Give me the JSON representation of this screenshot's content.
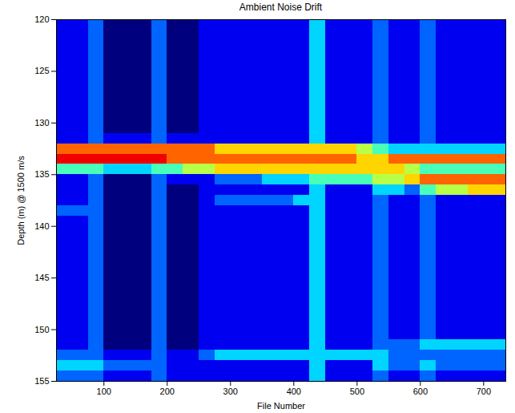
{
  "chart_data": {
    "type": "heatmap",
    "title": "Ambient Noise Drift",
    "x_label": "File Number",
    "y_label": "Depth (m) @ 1500 m/s",
    "xlim": [
      25,
      735
    ],
    "ylim": [
      120,
      155
    ],
    "xticks": [
      100,
      200,
      300,
      400,
      500,
      600,
      700
    ],
    "yticks": [
      120,
      125,
      130,
      135,
      140,
      145,
      150,
      155
    ],
    "value_range": [
      0,
      9
    ],
    "x_bins": [
      25,
      50,
      75,
      100,
      125,
      150,
      175,
      200,
      225,
      250,
      275,
      300,
      325,
      350,
      375,
      400,
      425,
      450,
      475,
      500,
      525,
      550,
      575,
      600,
      625,
      650,
      675,
      700,
      725,
      750
    ],
    "y_bins": [
      120,
      121,
      122,
      123,
      124,
      125,
      126,
      127,
      128,
      129,
      130,
      131,
      132,
      133,
      134,
      135,
      136,
      137,
      138,
      139,
      140,
      141,
      142,
      143,
      144,
      145,
      146,
      147,
      148,
      149,
      150,
      151,
      152,
      153,
      154,
      155
    ],
    "values": [
      [
        1,
        1,
        2,
        0,
        0,
        0,
        2,
        0,
        0,
        1,
        1,
        1,
        1,
        1,
        1,
        1,
        3,
        1,
        1,
        1,
        2,
        1,
        1,
        2,
        1,
        1,
        1,
        1,
        1
      ],
      [
        1,
        1,
        2,
        0,
        0,
        0,
        2,
        0,
        0,
        1,
        1,
        1,
        1,
        1,
        1,
        1,
        3,
        1,
        1,
        1,
        2,
        1,
        1,
        2,
        1,
        1,
        1,
        1,
        1
      ],
      [
        1,
        1,
        2,
        0,
        0,
        0,
        2,
        0,
        0,
        1,
        1,
        1,
        1,
        1,
        1,
        1,
        3,
        1,
        1,
        1,
        2,
        1,
        1,
        2,
        1,
        1,
        1,
        1,
        1
      ],
      [
        1,
        1,
        2,
        0,
        0,
        0,
        2,
        0,
        0,
        1,
        1,
        1,
        1,
        1,
        1,
        1,
        3,
        1,
        1,
        1,
        2,
        1,
        1,
        2,
        1,
        1,
        1,
        1,
        1
      ],
      [
        1,
        1,
        2,
        0,
        0,
        0,
        2,
        0,
        0,
        1,
        1,
        1,
        1,
        1,
        1,
        1,
        3,
        1,
        1,
        1,
        2,
        1,
        1,
        2,
        1,
        1,
        1,
        1,
        1
      ],
      [
        1,
        1,
        2,
        0,
        0,
        0,
        2,
        0,
        0,
        1,
        1,
        1,
        1,
        1,
        1,
        1,
        3,
        1,
        1,
        1,
        2,
        1,
        1,
        2,
        1,
        1,
        1,
        1,
        1
      ],
      [
        1,
        1,
        2,
        0,
        0,
        0,
        2,
        0,
        0,
        1,
        1,
        1,
        1,
        1,
        1,
        1,
        3,
        1,
        1,
        1,
        2,
        1,
        1,
        2,
        1,
        1,
        1,
        1,
        1
      ],
      [
        1,
        1,
        2,
        0,
        0,
        0,
        2,
        0,
        0,
        1,
        1,
        1,
        1,
        1,
        1,
        1,
        3,
        1,
        1,
        1,
        2,
        1,
        1,
        2,
        1,
        1,
        1,
        1,
        1
      ],
      [
        1,
        1,
        2,
        0,
        0,
        0,
        2,
        0,
        0,
        1,
        1,
        1,
        1,
        1,
        1,
        1,
        3,
        1,
        1,
        1,
        2,
        1,
        1,
        2,
        1,
        1,
        1,
        1,
        1
      ],
      [
        1,
        1,
        2,
        0,
        0,
        0,
        2,
        0,
        0,
        1,
        1,
        1,
        1,
        1,
        1,
        1,
        3,
        1,
        1,
        1,
        2,
        1,
        1,
        2,
        1,
        1,
        1,
        1,
        1
      ],
      [
        1,
        1,
        2,
        0,
        0,
        0,
        2,
        0,
        0,
        1,
        1,
        1,
        1,
        1,
        1,
        1,
        3,
        1,
        1,
        1,
        2,
        1,
        1,
        2,
        1,
        1,
        1,
        1,
        1
      ],
      [
        1,
        1,
        2,
        1,
        1,
        1,
        2,
        1,
        1,
        1,
        1,
        1,
        1,
        1,
        1,
        1,
        3,
        1,
        1,
        1,
        2,
        1,
        1,
        2,
        1,
        1,
        1,
        1,
        1
      ],
      [
        7,
        7,
        7,
        7,
        7,
        7,
        7,
        7,
        7,
        7,
        6,
        6,
        6,
        6,
        6,
        6,
        6,
        6,
        6,
        5,
        4,
        3,
        3,
        3,
        3,
        3,
        3,
        3,
        3
      ],
      [
        8,
        8,
        8,
        8,
        8,
        8,
        8,
        7,
        7,
        7,
        7,
        7,
        7,
        7,
        7,
        7,
        7,
        7,
        7,
        6,
        6,
        7,
        7,
        7,
        7,
        7,
        7,
        7,
        7
      ],
      [
        4,
        4,
        4,
        3,
        3,
        3,
        4,
        4,
        5,
        5,
        6,
        6,
        6,
        6,
        6,
        6,
        6,
        6,
        6,
        6,
        6,
        6,
        5,
        4,
        4,
        4,
        4,
        4,
        4
      ],
      [
        1,
        1,
        2,
        0,
        0,
        0,
        2,
        1,
        1,
        1,
        2,
        2,
        2,
        3,
        3,
        3,
        4,
        4,
        4,
        4,
        5,
        5,
        6,
        7,
        7,
        7,
        7,
        7,
        7
      ],
      [
        1,
        1,
        2,
        0,
        0,
        0,
        2,
        0,
        0,
        1,
        1,
        1,
        1,
        1,
        1,
        1,
        3,
        1,
        1,
        1,
        3,
        3,
        2,
        4,
        5,
        5,
        6,
        6,
        6
      ],
      [
        1,
        1,
        2,
        0,
        0,
        0,
        2,
        0,
        0,
        1,
        2,
        2,
        2,
        2,
        2,
        3,
        3,
        1,
        1,
        1,
        2,
        1,
        1,
        2,
        1,
        1,
        1,
        1,
        1
      ],
      [
        2,
        2,
        2,
        0,
        0,
        0,
        2,
        0,
        0,
        1,
        1,
        1,
        1,
        1,
        1,
        1,
        3,
        1,
        1,
        1,
        2,
        1,
        1,
        2,
        1,
        1,
        1,
        1,
        1
      ],
      [
        1,
        1,
        2,
        0,
        0,
        0,
        2,
        0,
        0,
        1,
        1,
        1,
        1,
        1,
        1,
        1,
        3,
        1,
        1,
        1,
        2,
        1,
        1,
        2,
        1,
        1,
        1,
        1,
        1
      ],
      [
        1,
        1,
        2,
        0,
        0,
        0,
        2,
        0,
        0,
        1,
        1,
        1,
        1,
        1,
        1,
        1,
        3,
        1,
        1,
        1,
        2,
        1,
        1,
        2,
        1,
        1,
        1,
        1,
        1
      ],
      [
        1,
        1,
        2,
        0,
        0,
        0,
        2,
        0,
        0,
        1,
        1,
        1,
        1,
        1,
        1,
        1,
        3,
        1,
        1,
        1,
        2,
        1,
        1,
        2,
        1,
        1,
        1,
        1,
        1
      ],
      [
        1,
        1,
        2,
        0,
        0,
        0,
        2,
        0,
        0,
        1,
        1,
        1,
        1,
        1,
        1,
        1,
        3,
        1,
        1,
        1,
        2,
        1,
        1,
        2,
        1,
        1,
        1,
        1,
        1
      ],
      [
        1,
        1,
        2,
        0,
        0,
        0,
        2,
        0,
        0,
        1,
        1,
        1,
        1,
        1,
        1,
        1,
        3,
        1,
        1,
        1,
        2,
        1,
        1,
        2,
        1,
        1,
        1,
        1,
        1
      ],
      [
        1,
        1,
        2,
        0,
        0,
        0,
        2,
        0,
        0,
        1,
        1,
        1,
        1,
        1,
        1,
        1,
        3,
        1,
        1,
        1,
        2,
        1,
        1,
        2,
        1,
        1,
        1,
        1,
        1
      ],
      [
        1,
        1,
        2,
        0,
        0,
        0,
        2,
        0,
        0,
        1,
        1,
        1,
        1,
        1,
        1,
        1,
        3,
        1,
        1,
        1,
        2,
        1,
        1,
        2,
        1,
        1,
        1,
        1,
        1
      ],
      [
        1,
        1,
        2,
        0,
        0,
        0,
        2,
        0,
        0,
        1,
        1,
        1,
        1,
        1,
        1,
        1,
        3,
        1,
        1,
        1,
        2,
        1,
        1,
        2,
        1,
        1,
        1,
        1,
        1
      ],
      [
        1,
        1,
        2,
        0,
        0,
        0,
        2,
        0,
        0,
        1,
        1,
        1,
        1,
        1,
        1,
        1,
        3,
        1,
        1,
        1,
        2,
        1,
        1,
        2,
        1,
        1,
        1,
        1,
        1
      ],
      [
        1,
        1,
        2,
        0,
        0,
        0,
        2,
        0,
        0,
        1,
        1,
        1,
        1,
        1,
        1,
        1,
        3,
        1,
        1,
        1,
        2,
        1,
        1,
        2,
        1,
        1,
        1,
        1,
        1
      ],
      [
        1,
        1,
        2,
        0,
        0,
        0,
        2,
        0,
        0,
        1,
        1,
        1,
        1,
        1,
        1,
        1,
        3,
        1,
        1,
        1,
        2,
        1,
        1,
        2,
        1,
        1,
        1,
        1,
        1
      ],
      [
        1,
        1,
        2,
        0,
        0,
        0,
        2,
        0,
        0,
        1,
        1,
        1,
        1,
        1,
        1,
        1,
        3,
        1,
        1,
        1,
        2,
        1,
        1,
        2,
        1,
        1,
        1,
        1,
        1
      ],
      [
        1,
        1,
        2,
        0,
        0,
        0,
        2,
        0,
        0,
        1,
        1,
        1,
        1,
        1,
        1,
        1,
        3,
        1,
        1,
        1,
        2,
        2,
        2,
        3,
        3,
        3,
        3,
        3,
        3
      ],
      [
        2,
        2,
        2,
        1,
        1,
        1,
        2,
        1,
        1,
        2,
        3,
        3,
        3,
        3,
        3,
        3,
        3,
        3,
        3,
        3,
        3,
        2,
        2,
        2,
        2,
        2,
        2,
        2,
        2
      ],
      [
        3,
        3,
        3,
        2,
        2,
        2,
        2,
        1,
        1,
        1,
        1,
        1,
        1,
        1,
        1,
        1,
        3,
        1,
        1,
        1,
        3,
        2,
        2,
        3,
        2,
        2,
        2,
        2,
        2
      ],
      [
        2,
        2,
        2,
        1,
        1,
        1,
        2,
        1,
        1,
        1,
        1,
        1,
        1,
        1,
        1,
        1,
        3,
        1,
        1,
        1,
        2,
        1,
        1,
        2,
        1,
        1,
        1,
        1,
        1
      ]
    ]
  }
}
